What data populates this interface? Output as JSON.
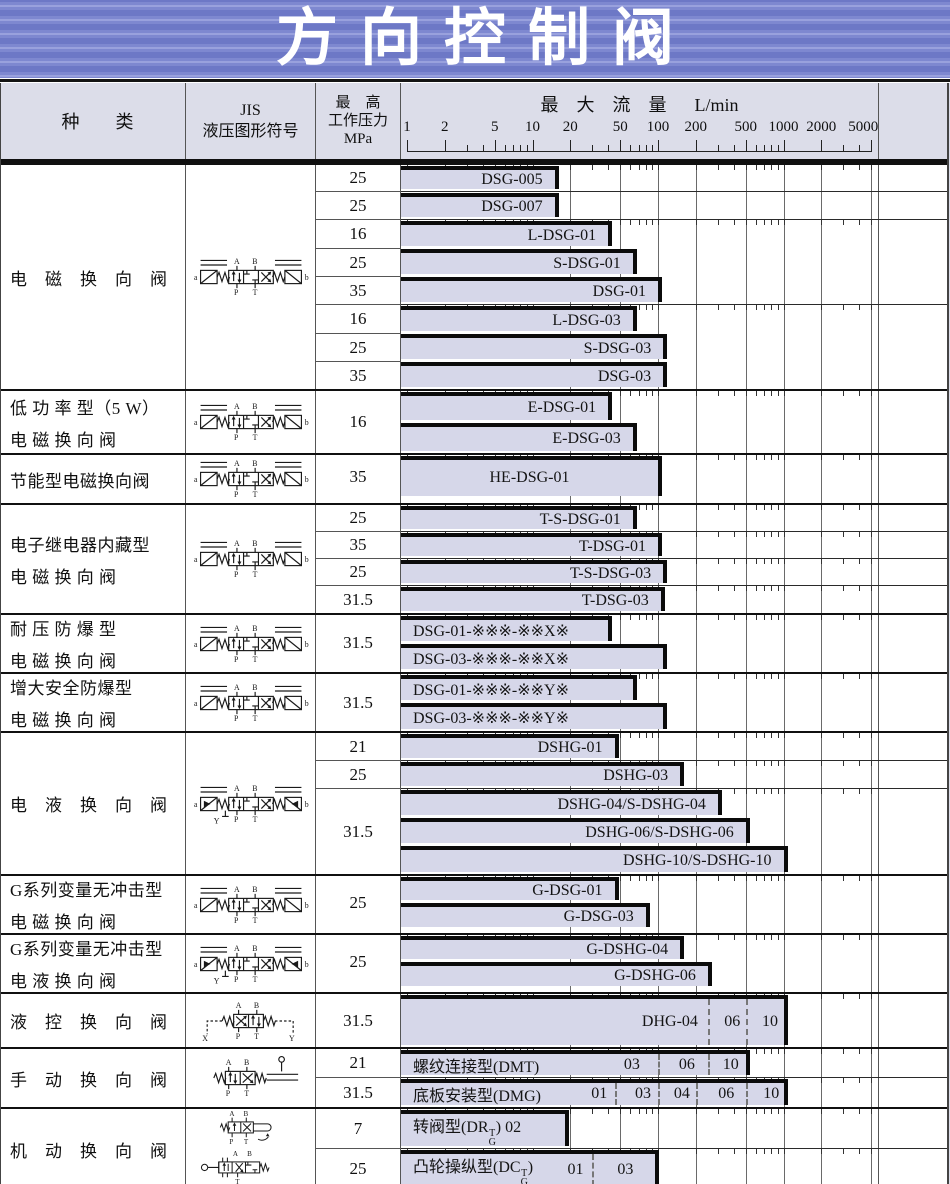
{
  "banner": {
    "title": "方向控制阀"
  },
  "header": {
    "col_category": "种　　类",
    "col_symbol_line1": "JIS",
    "col_symbol_line2": "液压图形符号",
    "col_pressure_1": "最　高",
    "col_pressure_2": "工作压力",
    "col_pressure_3": "MPa",
    "flow_title": "最　大　流　量",
    "flow_unit": "L/min",
    "scale_ticks": [
      1,
      2,
      5,
      10,
      20,
      50,
      100,
      200,
      500,
      1000,
      2000,
      5000
    ]
  },
  "colors": {
    "banner_blue": "#7e88d0",
    "banner_blue_light": "#99a1dd",
    "banner_blue_dark": "#6d78c6",
    "bar_fill": "#d6d7e9",
    "page_bg": "#dcdde9",
    "line_dark": "#101010"
  },
  "chart_data": {
    "type": "bar",
    "title": "方向控制阀",
    "x_axis": {
      "label": "最大流量",
      "unit": "L/min",
      "scale": "log",
      "range": [
        1,
        5000
      ],
      "ticks": [
        1,
        2,
        5,
        10,
        20,
        50,
        100,
        200,
        500,
        1000,
        2000,
        5000
      ]
    },
    "pressure_unit": "MPa",
    "sections": [
      {
        "category": [
          "电　磁　换　向　阀"
        ],
        "symbol": "dsg",
        "pressure_cells": [
          {
            "mpa": "25",
            "span": 1
          },
          {
            "mpa": "25",
            "span": 1
          },
          {
            "mpa": "16",
            "span": 1
          },
          {
            "mpa": "25",
            "span": 1
          },
          {
            "mpa": "35",
            "span": 1
          },
          {
            "mpa": "16",
            "span": 1
          },
          {
            "mpa": "25",
            "span": 1
          },
          {
            "mpa": "35",
            "span": 1
          }
        ],
        "groups": [
          {
            "ruler": true,
            "rows": [
              {
                "model": "DSG-005",
                "max_flow": 15
              }
            ]
          },
          {
            "ruler": false,
            "rows": [
              {
                "model": "DSG-007",
                "max_flow": 15
              }
            ]
          },
          {
            "ruler": true,
            "rows": [
              {
                "model": "L-DSG-01",
                "max_flow": 40
              },
              {
                "model": "S-DSG-01",
                "max_flow": 63
              },
              {
                "model": "DSG-01",
                "max_flow": 100
              }
            ]
          },
          {
            "ruler": true,
            "rows": [
              {
                "model": "L-DSG-03",
                "max_flow": 63
              },
              {
                "model": "S-DSG-03",
                "max_flow": 110
              },
              {
                "model": "DSG-03",
                "max_flow": 110
              }
            ]
          }
        ]
      },
      {
        "category": [
          "低 功 率 型（5 W）",
          "电 磁 换 向 阀"
        ],
        "symbol": "dsg",
        "pressure_cells": [
          {
            "mpa": "16",
            "span": 2
          }
        ],
        "groups": [
          {
            "ruler": true,
            "rows": [
              {
                "model": "E-DSG-01",
                "max_flow": 40
              },
              {
                "model": "E-DSG-03",
                "max_flow": 63
              }
            ]
          }
        ]
      },
      {
        "category": [
          "节能型电磁换向阀"
        ],
        "symbol": "dsg",
        "pressure_cells": [
          {
            "mpa": "35",
            "span": 1
          }
        ],
        "groups": [
          {
            "ruler": true,
            "rows": [
              {
                "model": "HE-DSG-01",
                "max_flow": 100,
                "align": "center"
              }
            ]
          }
        ]
      },
      {
        "category": [
          "电子继电器内藏型",
          "电 磁 换 向 阀"
        ],
        "symbol": "dsg",
        "pressure_cells": [
          {
            "mpa": "25",
            "span": 1
          },
          {
            "mpa": "35",
            "span": 1
          },
          {
            "mpa": "25",
            "span": 1
          },
          {
            "mpa": "31.5",
            "span": 1
          }
        ],
        "groups": [
          {
            "ruler": true,
            "rows": [
              {
                "model": "T-S-DSG-01",
                "max_flow": 63
              }
            ]
          },
          {
            "ruler": true,
            "rows": [
              {
                "model": "T-DSG-01",
                "max_flow": 100
              }
            ]
          },
          {
            "ruler": true,
            "rows": [
              {
                "model": "T-S-DSG-03",
                "max_flow": 110
              }
            ]
          },
          {
            "ruler": true,
            "rows": [
              {
                "model": "T-DSG-03",
                "max_flow": 105
              }
            ]
          }
        ]
      },
      {
        "category": [
          "耐 压 防 爆 型",
          "电 磁 换 向 阀"
        ],
        "symbol": "dsg",
        "pressure_cells": [
          {
            "mpa": "31.5",
            "span": 2
          }
        ],
        "groups": [
          {
            "ruler": true,
            "rows": [
              {
                "model": "DSG-01-※※※-※※X※",
                "max_flow": 40,
                "align": "left"
              },
              {
                "model": "DSG-03-※※※-※※X※",
                "max_flow": 110,
                "align": "left"
              }
            ]
          }
        ]
      },
      {
        "category": [
          "增大安全防爆型",
          "电 磁 换 向 阀"
        ],
        "symbol": "dsg",
        "pressure_cells": [
          {
            "mpa": "31.5",
            "span": 2
          }
        ],
        "groups": [
          {
            "ruler": true,
            "rows": [
              {
                "model": "DSG-01-※※※-※※Y※",
                "max_flow": 63,
                "align": "left"
              },
              {
                "model": "DSG-03-※※※-※※Y※",
                "max_flow": 110,
                "align": "left"
              }
            ]
          }
        ]
      },
      {
        "category": [
          "电　液　换　向　阀"
        ],
        "symbol": "dshg",
        "pressure_cells": [
          {
            "mpa": "21",
            "span": 1
          },
          {
            "mpa": "25",
            "span": 1
          },
          {
            "mpa": "31.5",
            "span": 3
          }
        ],
        "groups": [
          {
            "ruler": true,
            "rows": [
              {
                "model": "DSHG-01",
                "max_flow": 45
              }
            ]
          },
          {
            "ruler": true,
            "rows": [
              {
                "model": "DSHG-03",
                "max_flow": 150
              }
            ]
          },
          {
            "ruler": true,
            "rows": [
              {
                "model": "DSHG-04/S-DSHG-04",
                "max_flow": 300
              },
              {
                "model": "DSHG-06/S-DSHG-06",
                "max_flow": 500
              },
              {
                "model": "DSHG-10/S-DSHG-10",
                "max_flow": 1000
              }
            ]
          }
        ]
      },
      {
        "category": [
          "G系列变量无冲击型",
          "电 磁 换 向 阀"
        ],
        "symbol": "dsg",
        "pressure_cells": [
          {
            "mpa": "25",
            "span": 2
          }
        ],
        "groups": [
          {
            "ruler": true,
            "rows": [
              {
                "model": "G-DSG-01",
                "max_flow": 45
              },
              {
                "model": "G-DSG-03",
                "max_flow": 80
              }
            ]
          }
        ]
      },
      {
        "category": [
          "G系列变量无冲击型",
          "电 液 换 向 阀"
        ],
        "symbol": "dshg",
        "pressure_cells": [
          {
            "mpa": "25",
            "span": 2
          }
        ],
        "groups": [
          {
            "ruler": true,
            "rows": [
              {
                "model": "G-DSHG-04",
                "max_flow": 150
              },
              {
                "model": "G-DSHG-06",
                "max_flow": 250
              }
            ]
          }
        ]
      },
      {
        "category": [
          "液　控　换　向　阀"
        ],
        "symbol": "dhg",
        "pressure_cells": [
          {
            "mpa": "31.5",
            "span": 1
          }
        ],
        "groups": [
          {
            "ruler": true,
            "rows": [
              {
                "model": "DHG-04",
                "max_flow": 1000,
                "align": "dashright",
                "dashes": [
                  250,
                  500
                ],
                "segs": [
                  {
                    "t": "06",
                    "v": 390
                  },
                  {
                    "t": "10",
                    "v": 780
                  }
                ]
              }
            ]
          }
        ]
      },
      {
        "category": [
          "手　动　换　向　阀"
        ],
        "symbol": "dmt",
        "pressure_cells": [
          {
            "mpa": "21",
            "span": 1
          },
          {
            "mpa": "31.5",
            "span": 1
          }
        ],
        "groups": [
          {
            "ruler": true,
            "rows": [
              {
                "model": "螺纹连接型(DMT)",
                "max_flow": 500,
                "align": "left",
                "dashes": [
                  100,
                  250
                ],
                "segs": [
                  {
                    "t": "03",
                    "v": 62
                  },
                  {
                    "t": "06",
                    "v": 170
                  },
                  {
                    "t": "10",
                    "v": 380
                  }
                ]
              }
            ]
          },
          {
            "ruler": true,
            "rows": [
              {
                "model": "底板安装型(DMG)",
                "max_flow": 1000,
                "align": "left",
                "dashes": [
                  45,
                  100,
                  200,
                  500
                ],
                "segs": [
                  {
                    "t": "01",
                    "v": 34
                  },
                  {
                    "t": "03",
                    "v": 76
                  },
                  {
                    "t": "04",
                    "v": 155
                  },
                  {
                    "t": "06",
                    "v": 350
                  },
                  {
                    "t": "10",
                    "v": 800
                  }
                ]
              }
            ]
          }
        ]
      },
      {
        "category": [
          "机　动　换　向　阀"
        ],
        "symbol": [
          "dr",
          "dc"
        ],
        "pressure_cells": [
          {
            "mpa": "7",
            "span": 1
          },
          {
            "mpa": "25",
            "span": 1
          }
        ],
        "groups": [
          {
            "ruler": true,
            "rows": [
              {
                "model": "转阀型(DR T/G) 02",
                "max_flow": 18,
                "align": "left",
                "label_parts": {
                  "pre": "转阀型(DR",
                  "stack": [
                    "T",
                    "G"
                  ],
                  "post": ") 02"
                }
              }
            ]
          },
          {
            "ruler": true,
            "rows": [
              {
                "model": "凸轮操纵型(DC T/G) 01 | 03",
                "max_flow": 95,
                "align": "left",
                "label_parts": {
                  "pre": "凸轮操纵型(DC",
                  "stack": [
                    "T",
                    "G"
                  ],
                  "post": ")"
                },
                "dashes": [
                  30
                ],
                "segs": [
                  {
                    "t": "01",
                    "v": 22
                  },
                  {
                    "t": "03",
                    "v": 55
                  }
                ]
              }
            ]
          }
        ]
      }
    ]
  }
}
